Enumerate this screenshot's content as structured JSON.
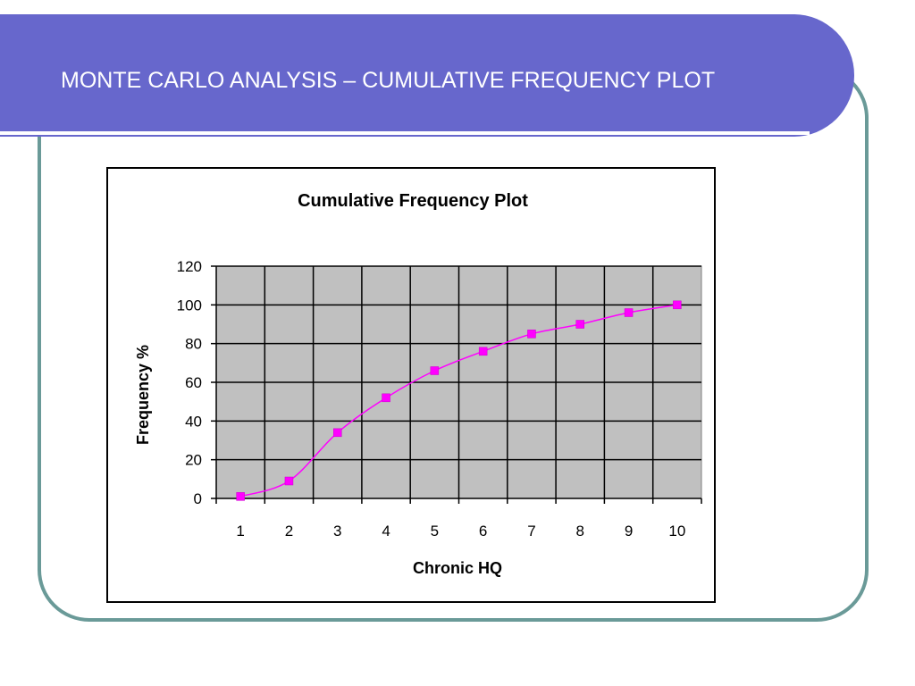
{
  "slide": {
    "title": "MONTE CARLO ANALYSIS – CUMULATIVE FREQUENCY PLOT"
  },
  "colors": {
    "title_bar": "#6767cc",
    "frame_border": "#6a9a98",
    "plot_area": "#c0c0c0",
    "series": "#ff00ff"
  },
  "chart_data": {
    "type": "line",
    "title": "Cumulative Frequency Plot",
    "xlabel": "Chronic HQ",
    "ylabel": "Frequency %",
    "categories": [
      "1",
      "2",
      "3",
      "4",
      "5",
      "6",
      "7",
      "8",
      "9",
      "10"
    ],
    "series": [
      {
        "values": [
          1,
          9,
          34,
          52,
          66,
          76,
          85,
          90,
          96,
          100
        ]
      }
    ],
    "ylim": [
      0,
      120
    ],
    "yticks": [
      0,
      20,
      40,
      60,
      80,
      100,
      120
    ],
    "grid": true,
    "legend": "none",
    "marker": "square"
  }
}
